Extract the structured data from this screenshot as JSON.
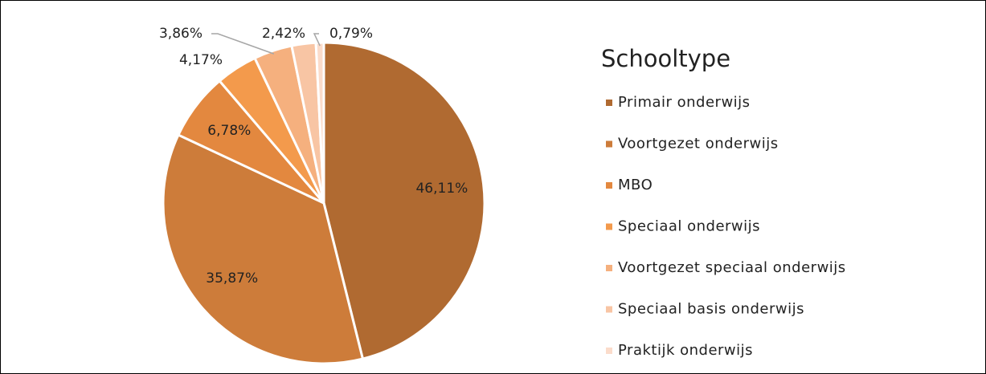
{
  "chart_data": {
    "type": "pie",
    "legend_title": "Schooltype",
    "categories": [
      "Primair onderwijs",
      "Voortgezet onderwijs",
      "MBO",
      "Speciaal onderwijs",
      "Voortgezet speciaal onderwijs",
      "Speciaal basis onderwijs",
      "Praktijk onderwijs"
    ],
    "values": [
      46.11,
      35.87,
      6.78,
      4.17,
      3.86,
      2.42,
      0.79
    ],
    "value_labels": [
      "46,11%",
      "35,87%",
      "6,78%",
      "4,17%",
      "3,86%",
      "2,42%",
      "0,79%"
    ],
    "colors": [
      "#b06a31",
      "#cd7c3a",
      "#e3883f",
      "#f39a4c",
      "#f5b07e",
      "#f8c5a4",
      "#fbdccb"
    ]
  }
}
